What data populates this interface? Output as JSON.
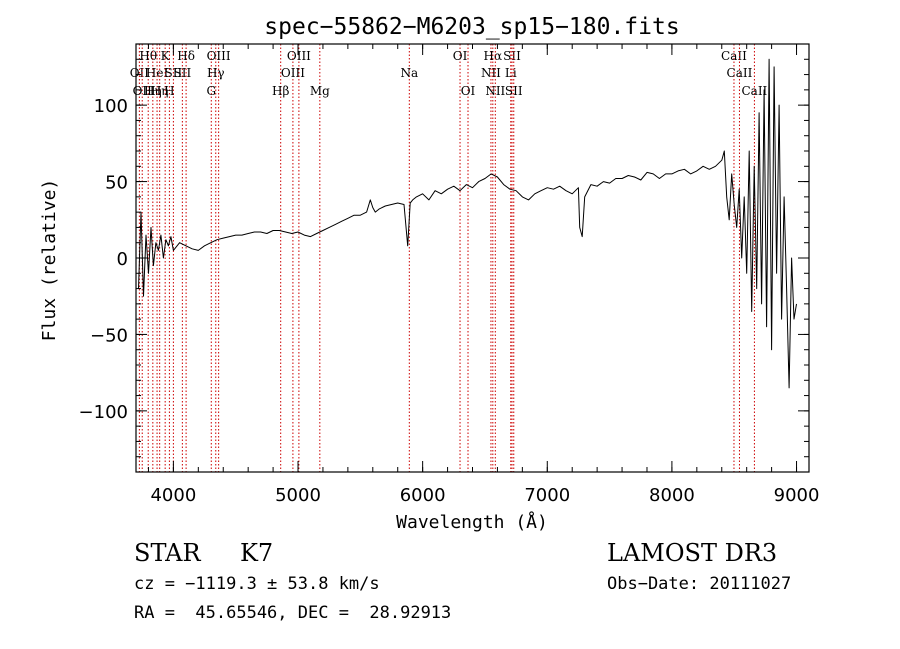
{
  "chart_data": {
    "type": "line",
    "title": "spec−55862−M6203_sp15−180.fits",
    "xlabel": "Wavelength (Å)",
    "ylabel": "Flux (relative)",
    "xlim": [
      3700,
      9100
    ],
    "ylim": [
      -140,
      140
    ],
    "x_ticks": [
      4000,
      5000,
      6000,
      7000,
      8000,
      9000
    ],
    "x_tick_labels": [
      "4000",
      "5000",
      "6000",
      "7000",
      "8000",
      "9000"
    ],
    "y_ticks": [
      -100,
      -50,
      0,
      50,
      100
    ],
    "y_tick_labels": [
      "−100",
      "−50",
      "0",
      "50",
      "100"
    ],
    "grid": false,
    "line_color": "#000000",
    "marker_color": "#cc0000",
    "series": [
      {
        "x": [
          3720,
          3740,
          3760,
          3780,
          3800,
          3820,
          3840,
          3860,
          3880,
          3900,
          3920,
          3940,
          3960,
          3980,
          4000,
          4050,
          4100,
          4150,
          4200,
          4250,
          4300,
          4350,
          4400,
          4450,
          4500,
          4550,
          4600,
          4650,
          4700,
          4750,
          4800,
          4850,
          4900,
          4950,
          5000,
          5050,
          5100,
          5150,
          5200,
          5250,
          5300,
          5350,
          5400,
          5450,
          5500,
          5550,
          5580,
          5600,
          5620,
          5650,
          5700,
          5750,
          5800,
          5850,
          5880,
          5900,
          5920,
          5950,
          6000,
          6050,
          6100,
          6150,
          6200,
          6250,
          6300,
          6350,
          6400,
          6450,
          6500,
          6550,
          6600,
          6650,
          6700,
          6750,
          6800,
          6850,
          6900,
          6950,
          7000,
          7050,
          7100,
          7150,
          7200,
          7250,
          7260,
          7280,
          7300,
          7350,
          7400,
          7450,
          7500,
          7550,
          7600,
          7650,
          7700,
          7750,
          7800,
          7850,
          7900,
          7950,
          8000,
          8050,
          8100,
          8150,
          8200,
          8250,
          8300,
          8350,
          8400,
          8420,
          8440,
          8460,
          8480,
          8500,
          8520,
          8540,
          8560,
          8580,
          8600,
          8620,
          8640,
          8660,
          8680,
          8700,
          8720,
          8740,
          8760,
          8780,
          8800,
          8820,
          8840,
          8860,
          8880,
          8900,
          8920,
          8940,
          8960,
          8980,
          9000
        ],
        "y": [
          -20,
          30,
          -25,
          15,
          -10,
          20,
          -5,
          10,
          5,
          15,
          0,
          12,
          8,
          14,
          5,
          10,
          8,
          6,
          5,
          8,
          10,
          12,
          13,
          14,
          15,
          15,
          16,
          17,
          17,
          16,
          18,
          18,
          17,
          16,
          17,
          15,
          14,
          16,
          18,
          20,
          22,
          24,
          26,
          28,
          28,
          30,
          38,
          33,
          30,
          32,
          34,
          35,
          36,
          35,
          8,
          36,
          38,
          40,
          42,
          38,
          44,
          42,
          45,
          47,
          44,
          48,
          46,
          50,
          52,
          55,
          53,
          48,
          45,
          44,
          40,
          38,
          42,
          44,
          46,
          45,
          47,
          44,
          42,
          46,
          20,
          14,
          40,
          48,
          47,
          50,
          49,
          52,
          52,
          54,
          53,
          51,
          56,
          55,
          52,
          55,
          55,
          57,
          58,
          55,
          57,
          60,
          58,
          60,
          64,
          70,
          40,
          25,
          55,
          35,
          20,
          45,
          0,
          40,
          -10,
          70,
          -35,
          60,
          -20,
          95,
          -30,
          110,
          -45,
          130,
          -60,
          125,
          -10,
          100,
          -40,
          40,
          -20,
          -85,
          0,
          -40,
          -30
        ],
        "name": ""
      }
    ],
    "line_markers": [
      {
        "wavelength": 3727,
        "row": 1,
        "label": "OII"
      },
      {
        "wavelength": 3750,
        "row": 2,
        "label": "OII"
      },
      {
        "wavelength": 3798,
        "row": 0,
        "label": "Hθ"
      },
      {
        "wavelength": 3835,
        "row": 2,
        "label": "Hη"
      },
      {
        "wavelength": 3869,
        "row": 1,
        "label": "HeI"
      },
      {
        "wavelength": 3890,
        "row": 2,
        "label": "Hη"
      },
      {
        "wavelength": 3934,
        "row": 0,
        "label": "K"
      },
      {
        "wavelength": 3968,
        "row": 2,
        "label": "H"
      },
      {
        "wavelength": 4000,
        "row": 1,
        "label": "SII"
      },
      {
        "wavelength": 4072,
        "row": 1,
        "label": "SII"
      },
      {
        "wavelength": 4102,
        "row": 0,
        "label": "Hδ"
      },
      {
        "wavelength": 4304,
        "row": 2,
        "label": "G"
      },
      {
        "wavelength": 4340,
        "row": 1,
        "label": "Hγ"
      },
      {
        "wavelength": 4363,
        "row": 0,
        "label": "OIII"
      },
      {
        "wavelength": 4861,
        "row": 2,
        "label": "Hβ"
      },
      {
        "wavelength": 4959,
        "row": 1,
        "label": "OIII"
      },
      {
        "wavelength": 5007,
        "row": 0,
        "label": "OIII"
      },
      {
        "wavelength": 5175,
        "row": 2,
        "label": "Mg"
      },
      {
        "wavelength": 5893,
        "row": 1,
        "label": "Na"
      },
      {
        "wavelength": 6300,
        "row": 0,
        "label": "OI"
      },
      {
        "wavelength": 6364,
        "row": 2,
        "label": "OI"
      },
      {
        "wavelength": 6548,
        "row": 1,
        "label": "NII"
      },
      {
        "wavelength": 6563,
        "row": 0,
        "label": "Hα"
      },
      {
        "wavelength": 6583,
        "row": 2,
        "label": "NII"
      },
      {
        "wavelength": 6707,
        "row": 1,
        "label": "Li"
      },
      {
        "wavelength": 6717,
        "row": 0,
        "label": "SII"
      },
      {
        "wavelength": 6731,
        "row": 2,
        "label": "SII"
      },
      {
        "wavelength": 8498,
        "row": 0,
        "label": "CaII"
      },
      {
        "wavelength": 8542,
        "row": 1,
        "label": "CaII"
      },
      {
        "wavelength": 8662,
        "row": 2,
        "label": "CaII"
      }
    ]
  },
  "info": {
    "class_label": "STAR",
    "subclass_label": "K7",
    "survey": "LAMOST DR3",
    "cz": "cz = −1119.3 ± 53.8 km/s",
    "obs_date": "Obs−Date: 20111027",
    "ra_dec": "RA =  45.65546, DEC =  28.92913"
  }
}
